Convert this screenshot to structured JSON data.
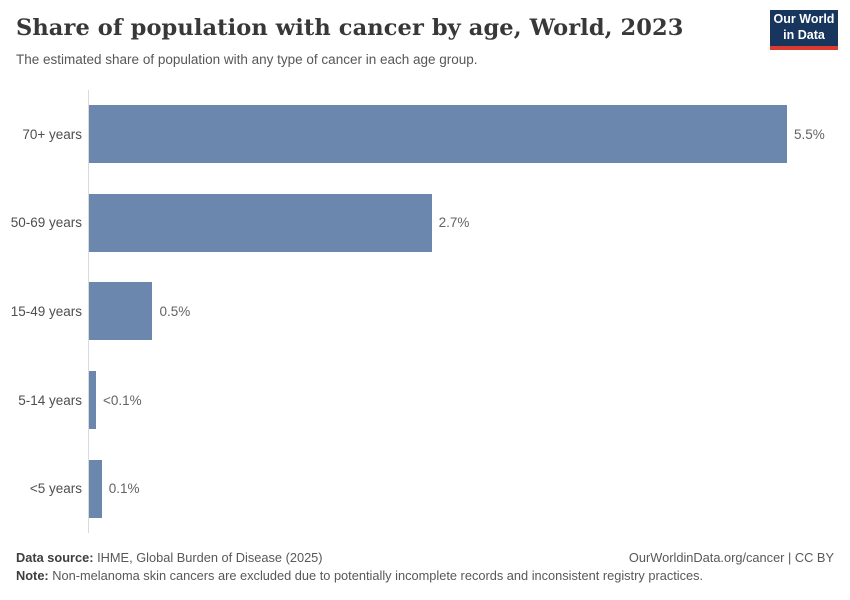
{
  "header": {
    "title": "Share of population with cancer by age, World, 2023",
    "subtitle": "The estimated share of population with any type of cancer in each age group.",
    "logo": {
      "line1": "Our World",
      "line2": "in Data",
      "bg_color": "#18355e",
      "accent_color": "#dc3a2f"
    }
  },
  "chart_data": {
    "type": "bar",
    "orientation": "horizontal",
    "title": "Share of population with cancer by age, World, 2023",
    "xlabel": "",
    "ylabel": "",
    "grid": false,
    "legend": "none",
    "xlim": [
      0,
      5.5
    ],
    "categories": [
      "70+ years",
      "50-69 years",
      "15-49 years",
      "5-14 years",
      "<5 years"
    ],
    "values": [
      5.5,
      2.7,
      0.5,
      0.055,
      0.1
    ],
    "value_labels": [
      "5.5%",
      "2.7%",
      "0.5%",
      "<0.1%",
      "0.1%"
    ],
    "bar_color": "#6c87ad"
  },
  "footer": {
    "datasource_label": "Data source:",
    "datasource_value": " IHME, Global Burden of Disease (2025)",
    "rights": "OurWorldinData.org/cancer | CC BY",
    "note_label": "Note:",
    "note_value": " Non-melanoma skin cancers are excluded due to potentially incomplete records and inconsistent registry practices."
  }
}
